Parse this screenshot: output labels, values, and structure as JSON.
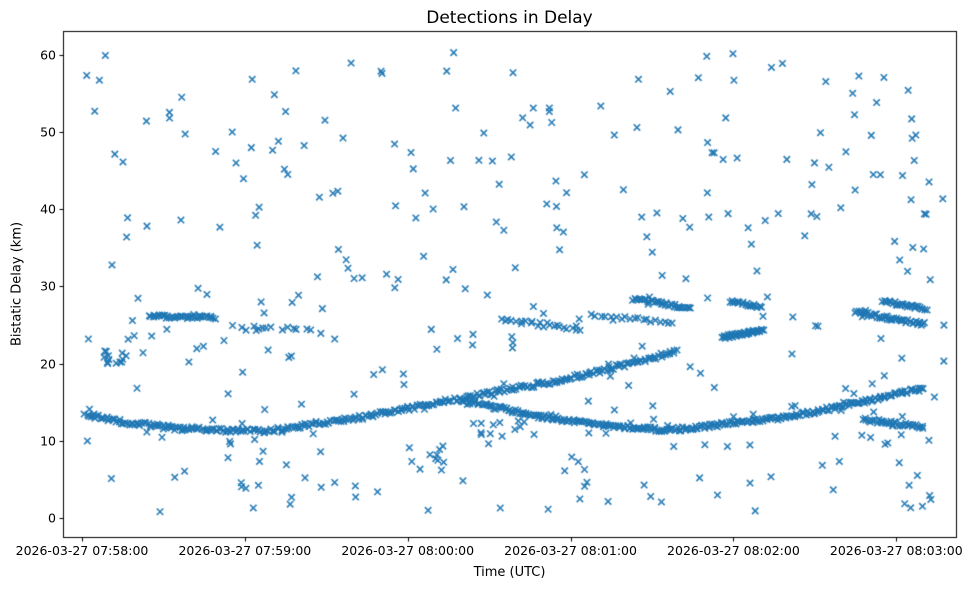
{
  "figure": {
    "title": "Detections in Delay",
    "xlabel": "Time (UTC)",
    "ylabel": "Bistatic Delay (km)",
    "background_color": "#ffffff",
    "marker": "x",
    "marker_color": "#1f77b4",
    "spine_color": "#000000"
  },
  "axes": {
    "x_unit": "seconds after 2026-03-27 07:58:00",
    "xlim_seconds": [
      -7,
      322
    ],
    "ylim_km": [
      -2.46,
      63.1
    ],
    "x_tick_seconds": [
      0,
      60,
      120,
      180,
      240,
      300
    ],
    "x_tick_labels": [
      "2026-03-27 07:58:00",
      "2026-03-27 07:59:00",
      "2026-03-27 08:00:00",
      "2026-03-27 08:01:00",
      "2026-03-27 08:02:00",
      "2026-03-27 08:03:00"
    ],
    "y_tick_km": [
      0,
      10,
      20,
      30,
      40,
      50,
      60
    ],
    "y_tick_labels": [
      "0",
      "10",
      "20",
      "30",
      "40",
      "50",
      "60"
    ],
    "grid": false,
    "legend": "none"
  },
  "chart_data": {
    "type": "scatter",
    "title": "Detections in Delay",
    "xlabel": "Time (UTC)",
    "ylabel": "Bistatic Delay (km)",
    "x_unit": "seconds after 2026-03-27 07:58:00 UTC",
    "y_unit": "km",
    "marker": "x",
    "color": "#1f77b4",
    "description": "Bistatic radar detections: dense target-track curves plus uniform random clutter detections over 07:58:00-08:03:00.",
    "tracks": [
      {
        "name": "track-main-rising",
        "points": [
          [
            1,
            13.5
          ],
          [
            14,
            12.5
          ],
          [
            33,
            11.7
          ],
          [
            55,
            11.3
          ],
          [
            68,
            11.3
          ],
          [
            80,
            11.9
          ],
          [
            104,
            13.1
          ],
          [
            129,
            14.8
          ],
          [
            152,
            16.3
          ],
          [
            177,
            17.9
          ],
          [
            202,
            20.0
          ],
          [
            219,
            21.6
          ]
        ],
        "count": 330,
        "jitter_km": 0.28,
        "jitter_s": 0.5,
        "seed": 101
      },
      {
        "name": "track-main-rising-cont",
        "points": [
          [
            236,
            23.4
          ],
          [
            251,
            24.4
          ]
        ],
        "count": 40,
        "jitter_km": 0.22,
        "jitter_s": 0.4,
        "seed": 102
      },
      {
        "name": "track-dip-then-rise",
        "points": [
          [
            140,
            15.1
          ],
          [
            151,
            14.4
          ],
          [
            171,
            13.0
          ],
          [
            190,
            12.1
          ],
          [
            206,
            11.6
          ],
          [
            215,
            11.45
          ],
          [
            224,
            11.6
          ],
          [
            240,
            12.3
          ],
          [
            261,
            13.1
          ],
          [
            285,
            14.9
          ],
          [
            310,
            16.8
          ]
        ],
        "count": 300,
        "jitter_km": 0.26,
        "jitter_s": 0.5,
        "seed": 103
      },
      {
        "name": "seg-26km-left",
        "points": [
          [
            25,
            26.1
          ],
          [
            49,
            26.0
          ]
        ],
        "count": 40,
        "jitter_km": 0.22,
        "jitter_s": 0.4,
        "seed": 104
      },
      {
        "name": "seg-24km-left-sparse",
        "points": [
          [
            56,
            24.7
          ],
          [
            87,
            24.2
          ]
        ],
        "count": 14,
        "jitter_km": 0.4,
        "jitter_s": 1.2,
        "seed": 105
      },
      {
        "name": "seg-25km-mid",
        "points": [
          [
            155,
            25.5
          ],
          [
            184,
            24.6
          ]
        ],
        "count": 24,
        "jitter_km": 0.35,
        "jitter_s": 0.8,
        "seed": 106
      },
      {
        "name": "seg-26km-mid",
        "points": [
          [
            188,
            26.1
          ],
          [
            218,
            25.4
          ]
        ],
        "count": 20,
        "jitter_km": 0.3,
        "jitter_s": 0.8,
        "seed": 107
      },
      {
        "name": "seg-28km-a",
        "points": [
          [
            203,
            28.4
          ],
          [
            224,
            27.2
          ]
        ],
        "count": 36,
        "jitter_km": 0.22,
        "jitter_s": 0.4,
        "seed": 108
      },
      {
        "name": "seg-28km-b",
        "points": [
          [
            239,
            28.1
          ],
          [
            250,
            27.3
          ]
        ],
        "count": 20,
        "jitter_km": 0.2,
        "jitter_s": 0.4,
        "seed": 109
      },
      {
        "name": "seg-26km-right",
        "points": [
          [
            285,
            26.7
          ],
          [
            310,
            25.1
          ]
        ],
        "count": 45,
        "jitter_km": 0.24,
        "jitter_s": 0.4,
        "seed": 110
      },
      {
        "name": "seg-28km-right",
        "points": [
          [
            295,
            28.1
          ],
          [
            311,
            27.1
          ]
        ],
        "count": 30,
        "jitter_km": 0.2,
        "jitter_s": 0.4,
        "seed": 111
      },
      {
        "name": "seg-12km-right",
        "points": [
          [
            288,
            12.8
          ],
          [
            310,
            11.7
          ]
        ],
        "count": 38,
        "jitter_km": 0.25,
        "jitter_s": 0.4,
        "seed": 112
      }
    ],
    "clusters": [
      {
        "name": "cluster-21km-left",
        "t_range": [
          5,
          15
        ],
        "km_range": [
          19.8,
          21.8
        ],
        "count": 10,
        "seed": 201
      },
      {
        "name": "cluster-12km-mid",
        "t_range": [
          144,
          168
        ],
        "km_range": [
          10.4,
          13.2
        ],
        "count": 13,
        "seed": 202
      },
      {
        "name": "cluster-8km-mid",
        "t_range": [
          114,
          135
        ],
        "km_range": [
          6.9,
          10.1
        ],
        "count": 9,
        "seed": 203
      }
    ],
    "clutter": {
      "name": "uniform-clutter",
      "count": 345,
      "t_range": [
        1,
        318
      ],
      "km_range": [
        0.6,
        60.3
      ],
      "seed": 13
    }
  }
}
